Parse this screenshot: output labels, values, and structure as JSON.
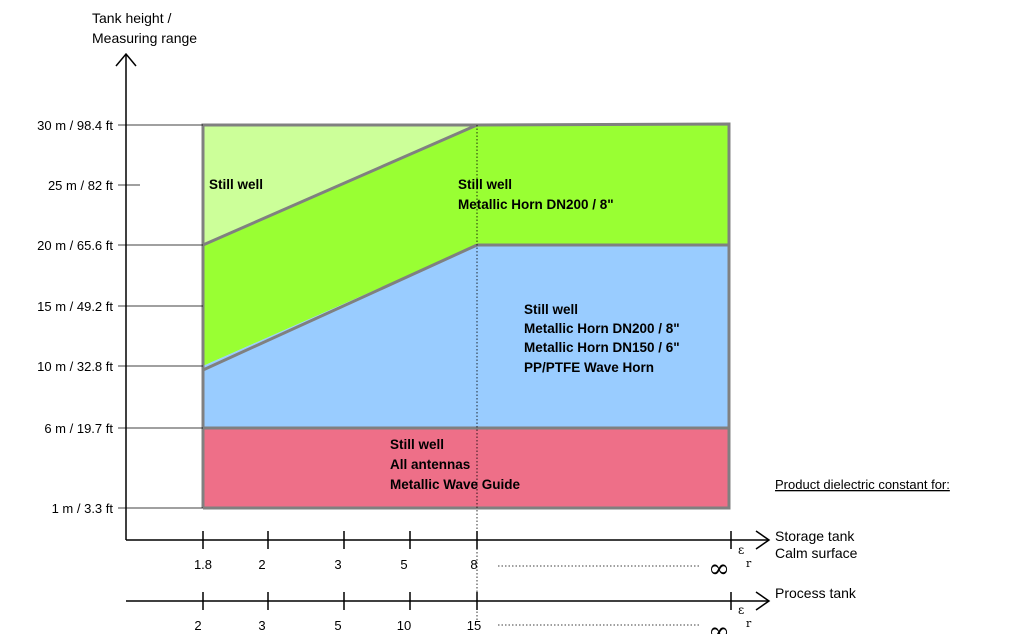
{
  "y_axis": {
    "title_lines": [
      "Tank height /",
      "Measuring range"
    ],
    "ticks": [
      "30 m / 98.4 ft",
      "25 m / 82 ft",
      "20 m / 65.6 ft",
      "15 m / 49.2 ft",
      "10 m / 32.8 ft",
      "6 m / 19.7 ft",
      "1 m / 3.3 ft"
    ]
  },
  "regions": {
    "still_well_top": [
      "Still well"
    ],
    "horn_green": [
      "Still well",
      "Metallic Horn DN200 / 8\""
    ],
    "blue": [
      "Still well",
      "Metallic Horn DN200 / 8\"",
      "Metallic Horn DN150 / 6\"",
      "PP/PTFE Wave Horn"
    ],
    "red": [
      "Still well",
      "All antennas",
      "Metallic Wave Guide"
    ]
  },
  "region_colors": {
    "light_green": "#ccff99",
    "green": "#99ff33",
    "blue": "#99ccff",
    "red": "#ee6f88",
    "border": "#808080"
  },
  "note": "Product dielectric constant for:",
  "storage_axis": {
    "ticks": [
      "1.8",
      "2",
      "3",
      "5",
      "8"
    ],
    "infinity": "∞",
    "symbol": "ε",
    "subscript": "r",
    "label_lines": [
      "Storage tank",
      "Calm surface"
    ]
  },
  "process_axis": {
    "ticks": [
      "2",
      "3",
      "5",
      "10",
      "15"
    ],
    "infinity": "∞",
    "symbol": "ε",
    "subscript": "r",
    "label_lines": [
      "Process tank"
    ]
  }
}
